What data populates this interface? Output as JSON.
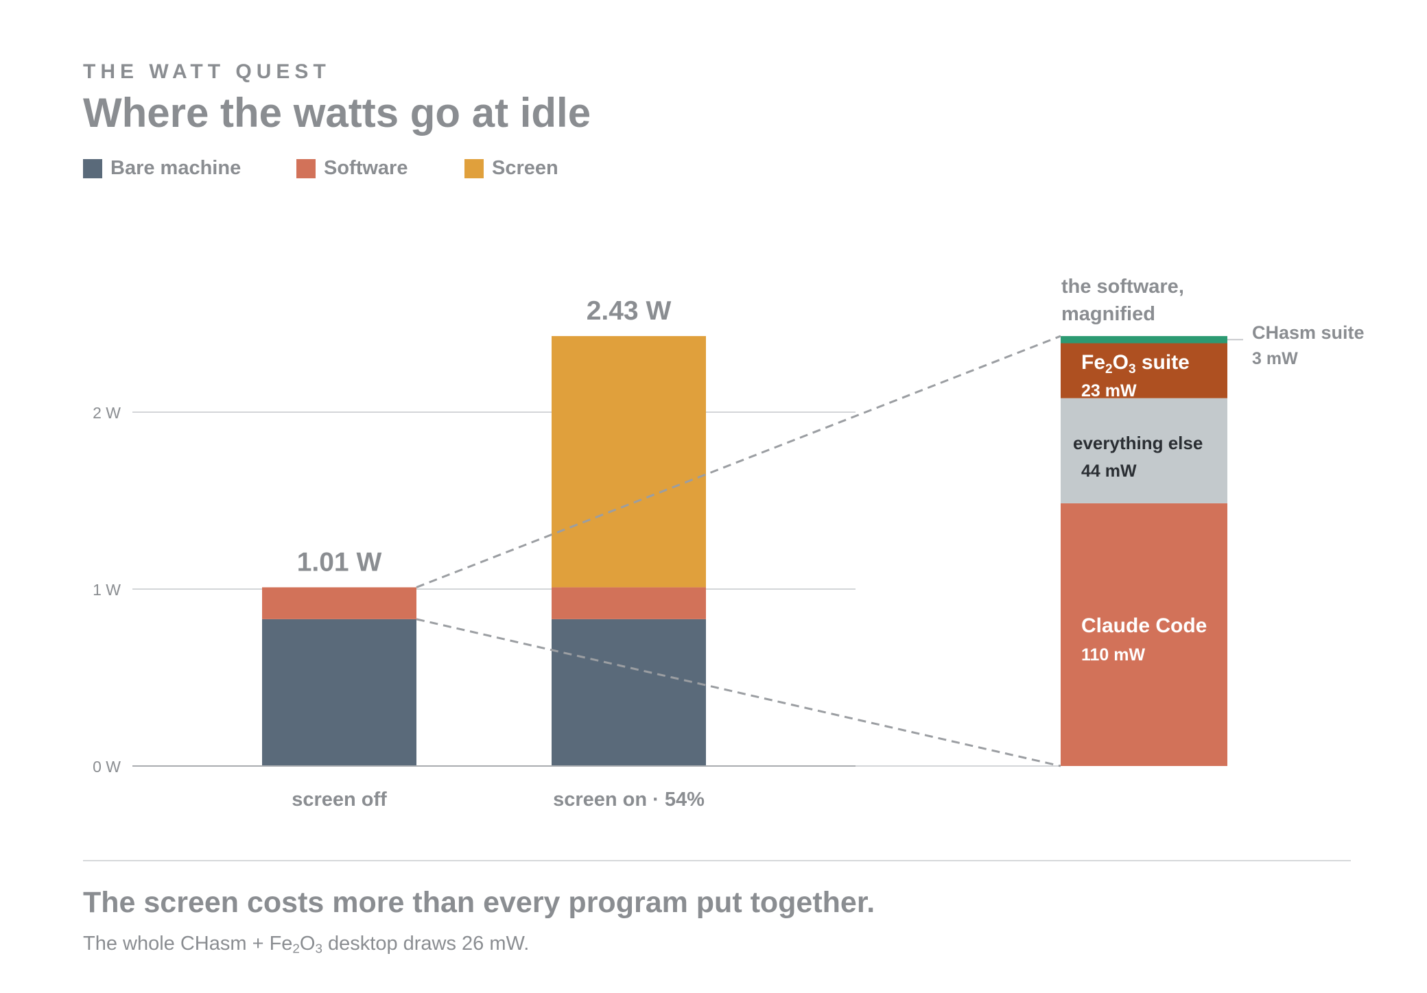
{
  "header": {
    "eyebrow": "THE WATT QUEST",
    "title": "Where the watts go at idle"
  },
  "legend": [
    {
      "label": "Bare machine",
      "color": "#5a6a7a"
    },
    {
      "label": "Software",
      "color": "#d27259"
    },
    {
      "label": "Screen",
      "color": "#e0a03c"
    }
  ],
  "chart_data": [
    {
      "type": "bar",
      "stacked": true,
      "categories": [
        "screen off",
        "screen on · 54%"
      ],
      "series": [
        {
          "name": "Bare machine",
          "values": [
            0.83,
            0.83
          ],
          "color": "#5a6a7a"
        },
        {
          "name": "Software",
          "values": [
            0.18,
            0.18
          ],
          "color": "#d27259"
        },
        {
          "name": "Screen",
          "values": [
            0,
            1.42
          ],
          "color": "#e0a03c"
        }
      ],
      "totals": [
        "1.01 W",
        "2.43 W"
      ],
      "y_ticks": [
        {
          "value": 0,
          "label": "0 W"
        },
        {
          "value": 1,
          "label": "1 W"
        },
        {
          "value": 2,
          "label": "2 W"
        }
      ],
      "ylim": [
        0,
        2.43
      ],
      "grid": true
    },
    {
      "type": "bar",
      "stacked": true,
      "title_lines": [
        "the software,",
        "magnified"
      ],
      "segments": [
        {
          "name": "Claude Code",
          "value_mw": 110,
          "value_label": "110 mW",
          "color": "#d27259",
          "text_color": "#ffffff"
        },
        {
          "name": "everything else",
          "value_mw": 44,
          "value_label": "44 mW",
          "color": "#c3c9cc",
          "text_color": "#2a2e33"
        },
        {
          "name_base": "Fe",
          "name_sub1": "2",
          "name_mid": "O",
          "name_sub2": "3",
          "name_rest": " suite",
          "value_mw": 23,
          "value_label": "23 mW",
          "color": "#ae5021",
          "text_color": "#ffffff"
        },
        {
          "name": "CHasm suite",
          "value_mw": 3,
          "value_label": "3 mW",
          "color": "#2c9a72",
          "label_outside": true
        }
      ]
    }
  ],
  "footer": {
    "takeaway": "The screen costs more than every program put together.",
    "note_pre": "The whole CHasm + Fe",
    "note_sub1": "2",
    "note_mid": "O",
    "note_sub2": "3",
    "note_post": " desktop draws 26 mW."
  }
}
